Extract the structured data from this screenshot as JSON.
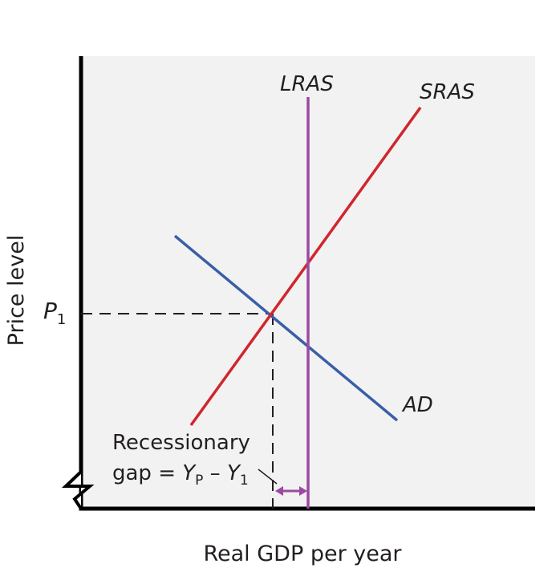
{
  "axes": {
    "y_label": "Price level",
    "x_label": "Real GDP per year"
  },
  "curves": {
    "lras": {
      "label": "LRAS",
      "color": "#9b4aa3"
    },
    "sras": {
      "label": "SRAS",
      "color": "#d0262d"
    },
    "ad": {
      "label": "AD",
      "color": "#3a5ea8"
    }
  },
  "price_marker": {
    "symbol": "P",
    "subscript": "1"
  },
  "gap_annotation": {
    "line1": "Recessionary",
    "line2_prefix": "gap = ",
    "y_symbol": "Y",
    "yp_sub": "P",
    "minus": " – ",
    "y1_sub": "1"
  },
  "colors": {
    "background": "#f2f2f2",
    "axis": "#000000",
    "gap_arrow": "#9b4aa3"
  }
}
